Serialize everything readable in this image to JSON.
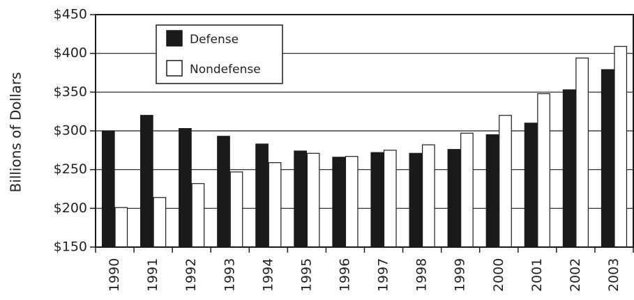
{
  "chart_data": {
    "type": "bar",
    "title": "",
    "xlabel": "",
    "ylabel": "Billions of Dollars",
    "categories": [
      "1990",
      "1991",
      "1992",
      "1993",
      "1994",
      "1995",
      "1996",
      "1997",
      "1998",
      "1999",
      "2000",
      "2001",
      "2002",
      "2003"
    ],
    "series": [
      {
        "name": "Defense",
        "color": "#1a1a1a",
        "values": [
          300,
          320,
          303,
          293,
          283,
          274,
          266,
          272,
          271,
          276,
          295,
          310,
          353,
          379
        ]
      },
      {
        "name": "Nondefense",
        "color": "#ffffff",
        "values": [
          201,
          214,
          232,
          247,
          259,
          271,
          267,
          275,
          282,
          297,
          320,
          348,
          394,
          409
        ]
      }
    ],
    "ylim": [
      150,
      450
    ],
    "yticks": [
      150,
      200,
      250,
      300,
      350,
      400,
      450
    ],
    "ytick_labels": [
      "$150",
      "$200",
      "$250",
      "$300",
      "$350",
      "$400",
      "$450"
    ],
    "grid": true,
    "legend_position": "top-left"
  }
}
